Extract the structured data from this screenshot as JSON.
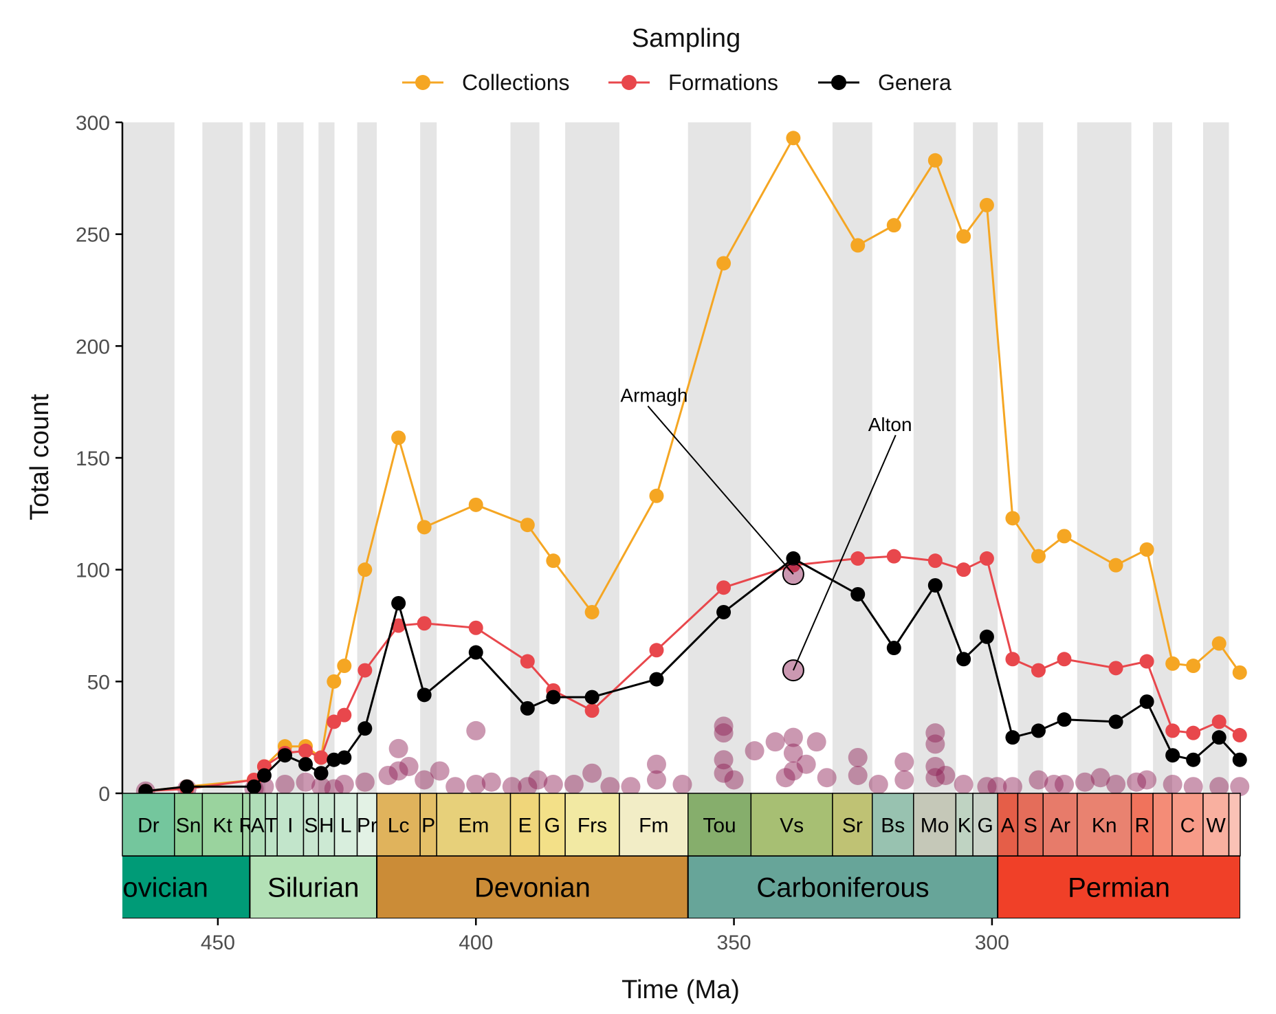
{
  "legend": {
    "title": "Sampling",
    "items": [
      {
        "label": "Collections",
        "color": "#F5A623"
      },
      {
        "label": "Formations",
        "color": "#E8474C"
      },
      {
        "label": "Genera",
        "color": "#000000"
      }
    ]
  },
  "chart_data": {
    "type": "line",
    "xlabel": "Time (Ma)",
    "ylabel": "Total count",
    "xlim": [
      468.5,
      251.9
    ],
    "ylim": [
      0,
      300
    ],
    "x_reversed": true,
    "xticks": [
      450,
      400,
      350,
      300
    ],
    "yticks": [
      0,
      50,
      100,
      150,
      200,
      250,
      300
    ],
    "grid": "alternating grey vertical bands per stage",
    "series": [
      {
        "name": "Collections",
        "color": "#F5A623",
        "points": [
          [
            464,
            1
          ],
          [
            456,
            3
          ],
          [
            443,
            6
          ],
          [
            441,
            12
          ],
          [
            437,
            21
          ],
          [
            433,
            21
          ],
          [
            430,
            16
          ],
          [
            427.5,
            50
          ],
          [
            425.5,
            57
          ],
          [
            421.5,
            100
          ],
          [
            415,
            159
          ],
          [
            410,
            119
          ],
          [
            400,
            129
          ],
          [
            390,
            120
          ],
          [
            385,
            104
          ],
          [
            377.5,
            81
          ],
          [
            365,
            133
          ],
          [
            352,
            237
          ],
          [
            338.5,
            293
          ],
          [
            326,
            245
          ],
          [
            319,
            254
          ],
          [
            311,
            283
          ],
          [
            305.5,
            249
          ],
          [
            301,
            263
          ],
          [
            296,
            123
          ],
          [
            291,
            106
          ],
          [
            286,
            115
          ],
          [
            276,
            102
          ],
          [
            270,
            109
          ],
          [
            265,
            58
          ],
          [
            261,
            57
          ],
          [
            256,
            67
          ],
          [
            252,
            54
          ]
        ]
      },
      {
        "name": "Formations",
        "color": "#E8474C",
        "points": [
          [
            464,
            1
          ],
          [
            456,
            2
          ],
          [
            443,
            6
          ],
          [
            441,
            12
          ],
          [
            437,
            18
          ],
          [
            433,
            19
          ],
          [
            430,
            16
          ],
          [
            427.5,
            32
          ],
          [
            425.5,
            35
          ],
          [
            421.5,
            55
          ],
          [
            415,
            75
          ],
          [
            410,
            76
          ],
          [
            400,
            74
          ],
          [
            390,
            59
          ],
          [
            385,
            46
          ],
          [
            377.5,
            37
          ],
          [
            365,
            64
          ],
          [
            352,
            92
          ],
          [
            338.5,
            102
          ],
          [
            326,
            105
          ],
          [
            319,
            106
          ],
          [
            311,
            104
          ],
          [
            305.5,
            100
          ],
          [
            301,
            105
          ],
          [
            296,
            60
          ],
          [
            291,
            55
          ],
          [
            286,
            60
          ],
          [
            276,
            56
          ],
          [
            270,
            59
          ],
          [
            265,
            28
          ],
          [
            261,
            27
          ],
          [
            256,
            32
          ],
          [
            252,
            26
          ]
        ]
      },
      {
        "name": "Genera",
        "color": "#000000",
        "points": [
          [
            464,
            1
          ],
          [
            456,
            3
          ],
          [
            443,
            3
          ],
          [
            441,
            8
          ],
          [
            437,
            17
          ],
          [
            433,
            13
          ],
          [
            430,
            9
          ],
          [
            427.5,
            15
          ],
          [
            425.5,
            16
          ],
          [
            421.5,
            29
          ],
          [
            415,
            85
          ],
          [
            410,
            44
          ],
          [
            400,
            63
          ],
          [
            390,
            38
          ],
          [
            385,
            43
          ],
          [
            377.5,
            43
          ],
          [
            365,
            51
          ],
          [
            352,
            81
          ],
          [
            338.5,
            105
          ],
          [
            326,
            89
          ],
          [
            319,
            65
          ],
          [
            311,
            93
          ],
          [
            305.5,
            60
          ],
          [
            301,
            70
          ],
          [
            296,
            25
          ],
          [
            291,
            28
          ],
          [
            286,
            33
          ],
          [
            276,
            32
          ],
          [
            270,
            41
          ],
          [
            265,
            17
          ],
          [
            261,
            15
          ],
          [
            256,
            25
          ],
          [
            252,
            15
          ]
        ]
      }
    ],
    "formation_points": [
      [
        464,
        1
      ],
      [
        456,
        2
      ],
      [
        443,
        2
      ],
      [
        441,
        3
      ],
      [
        437,
        4
      ],
      [
        433,
        5
      ],
      [
        430,
        3
      ],
      [
        427.5,
        2
      ],
      [
        425.5,
        4
      ],
      [
        421.5,
        5
      ],
      [
        417,
        8
      ],
      [
        415,
        20
      ],
      [
        415,
        10
      ],
      [
        413,
        12
      ],
      [
        410,
        6
      ],
      [
        407,
        10
      ],
      [
        404,
        3
      ],
      [
        400,
        28
      ],
      [
        400,
        4
      ],
      [
        397,
        5
      ],
      [
        393,
        3
      ],
      [
        390,
        3
      ],
      [
        388,
        6
      ],
      [
        385,
        4
      ],
      [
        381,
        4
      ],
      [
        377.5,
        9
      ],
      [
        374,
        3
      ],
      [
        370,
        3
      ],
      [
        365,
        13
      ],
      [
        365,
        6
      ],
      [
        360,
        4
      ],
      [
        352,
        30
      ],
      [
        352,
        27
      ],
      [
        352,
        15
      ],
      [
        352,
        9
      ],
      [
        350,
        6
      ],
      [
        346,
        19
      ],
      [
        342,
        23
      ],
      [
        340,
        7
      ],
      [
        338.5,
        25
      ],
      [
        338.5,
        18
      ],
      [
        338.5,
        10
      ],
      [
        336,
        13
      ],
      [
        334,
        23
      ],
      [
        332,
        7
      ],
      [
        326,
        16
      ],
      [
        326,
        8
      ],
      [
        322,
        4
      ],
      [
        317,
        14
      ],
      [
        317,
        6
      ],
      [
        311,
        27
      ],
      [
        311,
        22
      ],
      [
        311,
        12
      ],
      [
        311,
        7
      ],
      [
        309,
        8
      ],
      [
        305.5,
        4
      ],
      [
        301,
        3
      ],
      [
        299,
        3
      ],
      [
        296,
        3
      ],
      [
        291,
        6
      ],
      [
        288,
        4
      ],
      [
        286,
        4
      ],
      [
        282,
        5
      ],
      [
        279,
        7
      ],
      [
        276,
        4
      ],
      [
        272,
        5
      ],
      [
        270,
        6
      ],
      [
        265,
        4
      ],
      [
        261,
        3
      ],
      [
        256,
        3
      ],
      [
        252,
        3
      ]
    ],
    "annotations": [
      {
        "label": "Armagh",
        "target": [
          338.5,
          98
        ],
        "label_at": [
          372,
          175
        ]
      },
      {
        "label": "Alton",
        "target": [
          338.5,
          55
        ],
        "label_at": [
          324,
          162
        ]
      }
    ],
    "stages": [
      {
        "label": "Dr",
        "start": 468.5,
        "end": 458.4,
        "color": "#74C69D"
      },
      {
        "label": "Sn",
        "start": 458.4,
        "end": 453,
        "color": "#8CCD95"
      },
      {
        "label": "Kt",
        "start": 453,
        "end": 445.2,
        "color": "#9AD39E"
      },
      {
        "label": "R",
        "start": 445.2,
        "end": 443.8,
        "color": "#A6D8A9"
      },
      {
        "label": "A",
        "start": 443.8,
        "end": 440.8,
        "color": "#B0DDB8"
      },
      {
        "label": "T",
        "start": 440.8,
        "end": 438.5,
        "color": "#BDE3C6"
      },
      {
        "label": "I",
        "start": 438.5,
        "end": 433.4,
        "color": "#C2E5CB"
      },
      {
        "label": "S",
        "start": 433.4,
        "end": 430.5,
        "color": "#C8E7D0"
      },
      {
        "label": "H",
        "start": 430.5,
        "end": 427.4,
        "color": "#CCE9D3"
      },
      {
        "label": "L",
        "start": 427.4,
        "end": 423,
        "color": "#D8EEDD"
      },
      {
        "label": "Pr",
        "start": 423,
        "end": 419.2,
        "color": "#E3F2E5"
      },
      {
        "label": "Lc",
        "start": 419.2,
        "end": 410.8,
        "color": "#E0B35C"
      },
      {
        "label": "P",
        "start": 410.8,
        "end": 407.6,
        "color": "#E4C068"
      },
      {
        "label": "Em",
        "start": 407.6,
        "end": 393.3,
        "color": "#E7D07A"
      },
      {
        "label": "E",
        "start": 393.3,
        "end": 387.7,
        "color": "#F0D67A"
      },
      {
        "label": "G",
        "start": 387.7,
        "end": 382.7,
        "color": "#F3E088"
      },
      {
        "label": "Frs",
        "start": 382.7,
        "end": 372.2,
        "color": "#F2E9A3"
      },
      {
        "label": "Fm",
        "start": 372.2,
        "end": 358.9,
        "color": "#F2EDC6"
      },
      {
        "label": "Tou",
        "start": 358.9,
        "end": 346.7,
        "color": "#86AE6C"
      },
      {
        "label": "Vs",
        "start": 346.7,
        "end": 330.9,
        "color": "#A7BF73"
      },
      {
        "label": "Sr",
        "start": 330.9,
        "end": 323.2,
        "color": "#BFC274"
      },
      {
        "label": "Bs",
        "start": 323.2,
        "end": 315.2,
        "color": "#98C2B0"
      },
      {
        "label": "Mo",
        "start": 315.2,
        "end": 307,
        "color": "#C5C8B8"
      },
      {
        "label": "K",
        "start": 307,
        "end": 303.7,
        "color": "#BFD3C2"
      },
      {
        "label": "G",
        "start": 303.7,
        "end": 298.9,
        "color": "#CAD3C8"
      },
      {
        "label": "A",
        "start": 298.9,
        "end": 295,
        "color": "#E55E48"
      },
      {
        "label": "S",
        "start": 295,
        "end": 290.1,
        "color": "#E46D5A"
      },
      {
        "label": "Ar",
        "start": 290.1,
        "end": 283.5,
        "color": "#E77B6A"
      },
      {
        "label": "Kn",
        "start": 283.5,
        "end": 273,
        "color": "#E98270"
      },
      {
        "label": "R",
        "start": 273,
        "end": 268.8,
        "color": "#F0735C"
      },
      {
        "label": "",
        "start": 268.8,
        "end": 265.1,
        "color": "#F48C77"
      },
      {
        "label": "C",
        "start": 265.1,
        "end": 259.1,
        "color": "#F79B88"
      },
      {
        "label": "W",
        "start": 259.1,
        "end": 254.1,
        "color": "#F9B0A0"
      },
      {
        "label": "",
        "start": 254.1,
        "end": 251.9,
        "color": "#FBC2B6"
      }
    ],
    "periods": [
      {
        "label": "Ordovician",
        "start": 485.4,
        "end": 443.8,
        "color": "#009B77"
      },
      {
        "label": "Silurian",
        "start": 443.8,
        "end": 419.2,
        "color": "#B3E1B6"
      },
      {
        "label": "Devonian",
        "start": 419.2,
        "end": 358.9,
        "color": "#CB8C37"
      },
      {
        "label": "Carboniferous",
        "start": 358.9,
        "end": 298.9,
        "color": "#67A599"
      },
      {
        "label": "Permian",
        "start": 298.9,
        "end": 251.9,
        "color": "#F04028"
      }
    ]
  }
}
